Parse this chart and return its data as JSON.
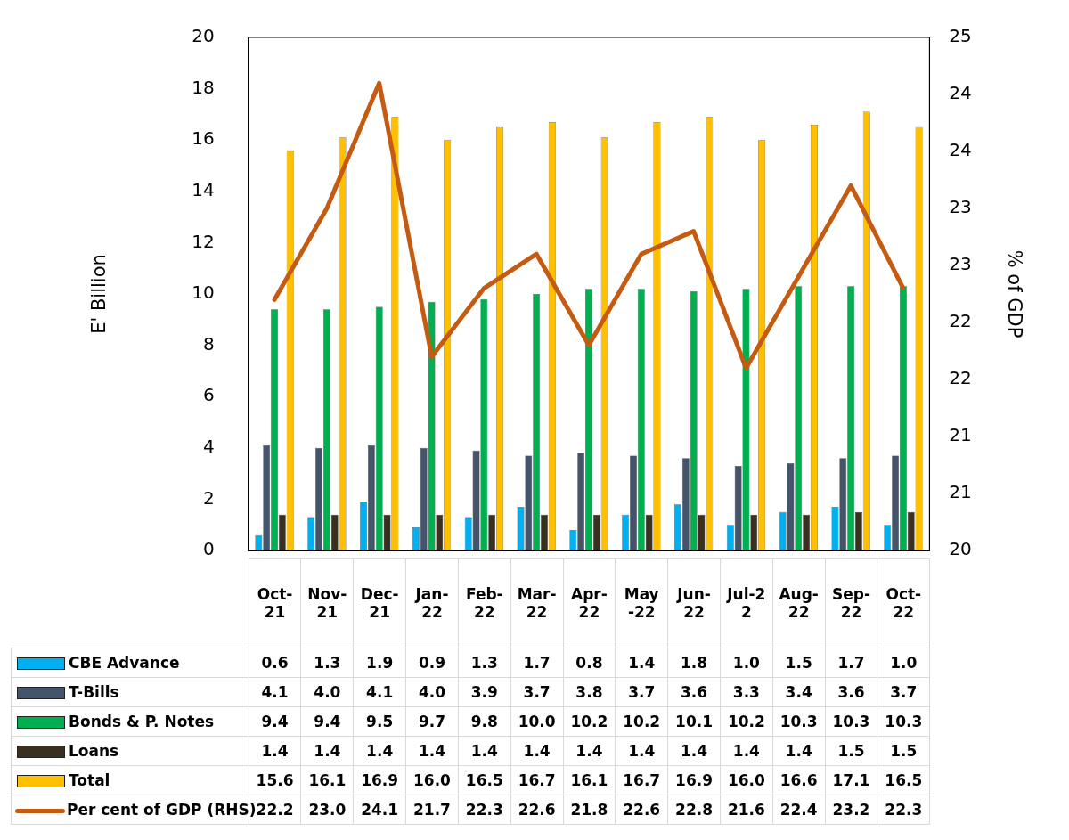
{
  "chart_data": {
    "type": "bar",
    "ylabel": "E' Billion",
    "y2label": "% of GDP",
    "categories": [
      "Oct-21",
      "Nov-21",
      "Dec-21",
      "Jan-22",
      "Feb-22",
      "Mar-22",
      "Apr-22",
      "May-22",
      "Jun-22",
      "Jul-22",
      "Aug-22",
      "Sep-22",
      "Oct-22"
    ],
    "series": [
      {
        "name": "CBE Advance",
        "color": "#00b0f0",
        "values": [
          0.6,
          1.3,
          1.9,
          0.9,
          1.3,
          1.7,
          0.8,
          1.4,
          1.8,
          1.0,
          1.5,
          1.7,
          1.0
        ],
        "value_labels": [
          "0.6",
          "1.3",
          "1.9",
          "0.9",
          "1.3",
          "1.7",
          "0.8",
          "1.4",
          "1.8",
          "1.0",
          "1.5",
          "1.7",
          "1.0"
        ]
      },
      {
        "name": "T-Bills",
        "color": "#44546a",
        "values": [
          4.1,
          4.0,
          4.1,
          4.0,
          3.9,
          3.7,
          3.8,
          3.7,
          3.6,
          3.3,
          3.4,
          3.6,
          3.7
        ],
        "value_labels": [
          "4.1",
          "4.0",
          "4.1",
          "4.0",
          "3.9",
          "3.7",
          "3.8",
          "3.7",
          "3.6",
          "3.3",
          "3.4",
          "3.6",
          "3.7"
        ]
      },
      {
        "name": "Bonds & P. Notes",
        "color": "#00b050",
        "values": [
          9.4,
          9.4,
          9.5,
          9.7,
          9.8,
          10.0,
          10.2,
          10.2,
          10.1,
          10.2,
          10.3,
          10.3,
          10.3
        ],
        "value_labels": [
          "9.4",
          "9.4",
          "9.5",
          "9.7",
          "9.8",
          "10.0",
          "10.2",
          "10.2",
          "10.1",
          "10.2",
          "10.3",
          "10.3",
          "10.3"
        ]
      },
      {
        "name": "Loans",
        "color": "#3b2f20",
        "values": [
          1.4,
          1.4,
          1.4,
          1.4,
          1.4,
          1.4,
          1.4,
          1.4,
          1.4,
          1.4,
          1.4,
          1.5,
          1.5
        ],
        "value_labels": [
          "1.4",
          "1.4",
          "1.4",
          "1.4",
          "1.4",
          "1.4",
          "1.4",
          "1.4",
          "1.4",
          "1.4",
          "1.4",
          "1.5",
          "1.5"
        ]
      },
      {
        "name": "Total",
        "color": "#ffc000",
        "values": [
          15.6,
          16.1,
          16.9,
          16.0,
          16.5,
          16.7,
          16.1,
          16.7,
          16.9,
          16.0,
          16.6,
          17.1,
          16.5
        ],
        "value_labels": [
          "15.6",
          "16.1",
          "16.9",
          "16.0",
          "16.5",
          "16.7",
          "16.1",
          "16.7",
          "16.9",
          "16.0",
          "16.6",
          "17.1",
          "16.5"
        ]
      },
      {
        "name": "Per cent of GDP (RHS)",
        "type": "line",
        "axis": "y2",
        "color": "#c55a11",
        "values": [
          22.2,
          23.0,
          24.1,
          21.7,
          22.3,
          22.6,
          21.8,
          22.6,
          22.8,
          21.6,
          22.4,
          23.2,
          22.3
        ],
        "value_labels": [
          "22.2",
          "23.0",
          "24.1",
          "21.7",
          "22.3",
          "22.6",
          "21.8",
          "22.6",
          "22.8",
          "21.6",
          "22.4",
          "23.2",
          "22.3"
        ]
      }
    ],
    "ylim": [
      0,
      20
    ],
    "yticks": [
      0,
      2,
      4,
      6,
      8,
      10,
      12,
      14,
      16,
      18,
      20
    ],
    "y2lim": [
      20,
      24.5
    ],
    "y2ticks": [
      20,
      {
        "value": 20.5,
        "label": "21"
      },
      21,
      {
        "value": 21.5,
        "label": "22"
      },
      22,
      {
        "value": 22.5,
        "label": "23"
      },
      23,
      {
        "value": 23.5,
        "label": "24"
      },
      24,
      {
        "value": 24.5,
        "label": "25"
      }
    ],
    "grid": false,
    "legend": "bottom",
    "marker": "none",
    "line_style": "solid"
  }
}
